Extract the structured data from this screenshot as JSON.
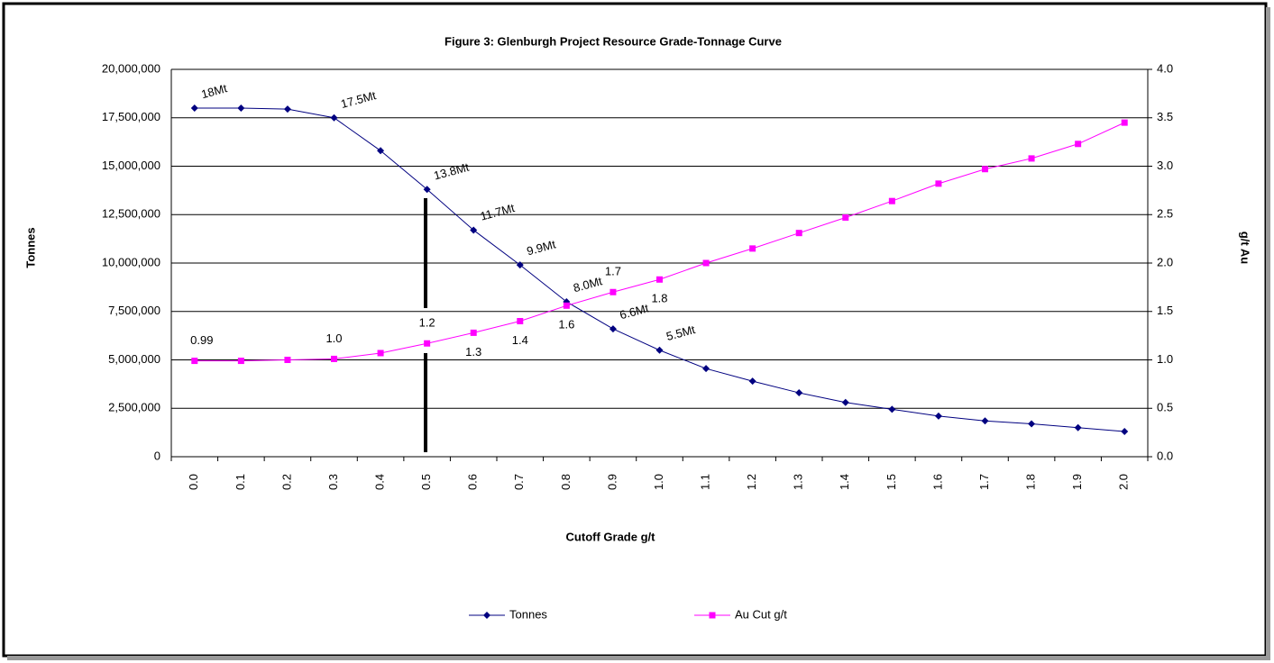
{
  "chart_data": {
    "type": "line",
    "title": "Figure 3: Glenburgh Project Resource Grade-Tonnage Curve",
    "x_label": "Cutoff Grade g/t",
    "y_label": "Tonnes",
    "y2_label": "g/t Au",
    "categories": [
      "0.0",
      "0.1",
      "0.2",
      "0.3",
      "0.4",
      "0.5",
      "0.6",
      "0.7",
      "0.8",
      "0.9",
      "1.0",
      "1.1",
      "1.2",
      "1.3",
      "1.4",
      "1.5",
      "1.6",
      "1.7",
      "1.8",
      "1.9",
      "2.0"
    ],
    "ylim": [
      0,
      20000000
    ],
    "yticks": [
      0,
      {
        "value": 2500000,
        "label": "2,500,000"
      },
      {
        "value": 5000000,
        "label": "5,000,000"
      },
      {
        "value": 7500000,
        "label": "7,500,000"
      },
      {
        "value": 10000000,
        "label": "10,000,000"
      },
      {
        "value": 12500000,
        "label": "12,500,000"
      },
      {
        "value": 15000000,
        "label": "15,000,000"
      },
      {
        "value": 17500000,
        "label": "17,500,000"
      },
      {
        "value": 20000000,
        "label": "20,000,000"
      }
    ],
    "y2lim": [
      0,
      4
    ],
    "y2ticks": [
      {
        "value": 0,
        "label": "0.0"
      },
      0.5,
      {
        "value": 1,
        "label": "1.0"
      },
      1.5,
      {
        "value": 2,
        "label": "2.0"
      },
      2.5,
      {
        "value": 3,
        "label": "3.0"
      },
      3.5,
      {
        "value": 4,
        "label": "4.0"
      }
    ],
    "grid": true,
    "legend": "bottom",
    "series": [
      {
        "name": "Tonnes",
        "color": "#000080",
        "marker": "diamond",
        "values": [
          18000000,
          18000000,
          17950000,
          17500000,
          15800000,
          13800000,
          11700000,
          9900000,
          8000000,
          6600000,
          5500000,
          4550000,
          3900000,
          3300000,
          2800000,
          2450000,
          2100000,
          1850000,
          1700000,
          1500000,
          1300000
        ],
        "value_labels": [
          "18Mt",
          null,
          null,
          "17.5Mt",
          null,
          "13.8Mt",
          "11.7Mt",
          "9.9Mt",
          "8.0Mt",
          "6.6Mt",
          "5.5Mt",
          null,
          null,
          null,
          null,
          null,
          null,
          null,
          null,
          null,
          null
        ]
      },
      {
        "name": "Au Cut g/t",
        "color": "#ff00ff",
        "marker": "square",
        "axis": "y2",
        "values": [
          0.99,
          0.99,
          1.0,
          1.01,
          1.07,
          1.17,
          1.28,
          1.4,
          1.56,
          1.7,
          1.83,
          2.0,
          2.15,
          2.31,
          2.47,
          2.64,
          2.82,
          2.97,
          3.08,
          3.23,
          3.45
        ],
        "value_labels": [
          "0.99",
          null,
          null,
          "1.0",
          null,
          "1.2",
          "1.3",
          "1.4",
          "1.6",
          "1.7",
          "1.8",
          null,
          null,
          null,
          null,
          null,
          null,
          null,
          null,
          null,
          null
        ]
      }
    ]
  }
}
